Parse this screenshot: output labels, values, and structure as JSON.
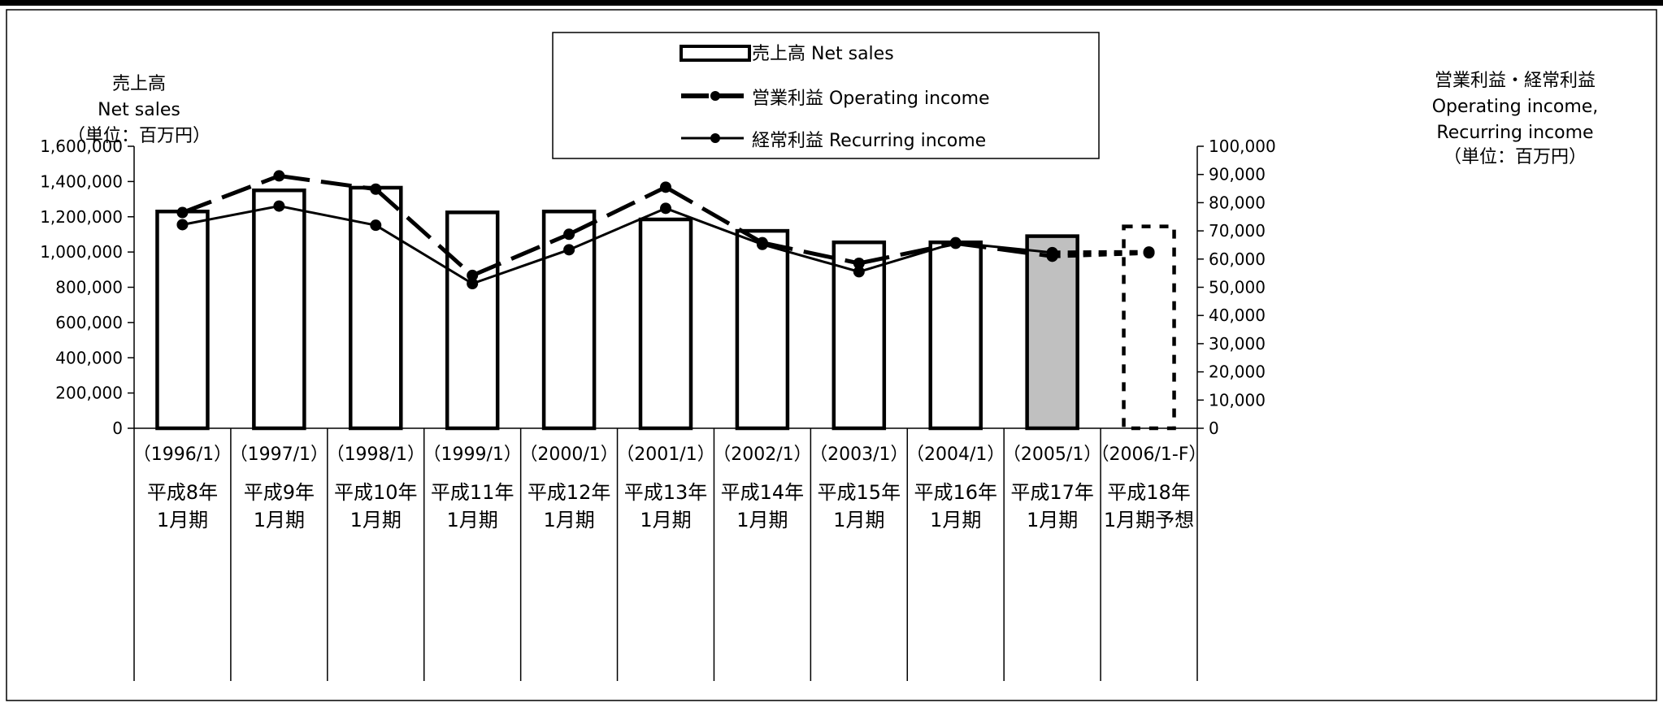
{
  "chart_data": {
    "type": "bar",
    "left_axis_title": [
      "売上高",
      "Net sales",
      "（単位：百万円）"
    ],
    "right_axis_title": [
      "営業利益・経常利益",
      "Operating income,",
      "Recurring income",
      "（単位：百万円）"
    ],
    "categories_year": [
      "（1996/1）",
      "（1997/1）",
      "（1998/1）",
      "（1999/1）",
      "（2000/1）",
      "（2001/1）",
      "（2002/1）",
      "（2003/1）",
      "（2004/1）",
      "（2005/1）",
      "（2006/1-F）"
    ],
    "categories_jp_1": [
      "平成8年",
      "平成9年",
      "平成10年",
      "平成11年",
      "平成12年",
      "平成13年",
      "平成14年",
      "平成15年",
      "平成16年",
      "平成17年",
      "平成18年"
    ],
    "categories_jp_2": [
      "1月期",
      "1月期",
      "1月期",
      "1月期",
      "1月期",
      "1月期",
      "1月期",
      "1月期",
      "1月期",
      "1月期",
      "1月期予想"
    ],
    "left_ticks": [
      "0",
      "200,000",
      "400,000",
      "600,000",
      "800,000",
      "1,000,000",
      "1,200,000",
      "1,400,000",
      "1,600,000"
    ],
    "right_ticks": [
      "0",
      "10,000",
      "20,000",
      "30,000",
      "40,000",
      "50,000",
      "60,000",
      "70,000",
      "80,000",
      "90,000",
      "100,000"
    ],
    "ylim_left": [
      0,
      1600000
    ],
    "ylim_right": [
      0,
      100000
    ],
    "series": [
      {
        "name": "売上高 Net sales",
        "kind": "bar",
        "axis": "left",
        "values": [
          1230000,
          1350000,
          1365000,
          1225000,
          1230000,
          1185000,
          1120000,
          1055000,
          1055000,
          1090000,
          1145000
        ]
      },
      {
        "name": "営業利益 Operating income",
        "kind": "line",
        "axis": "right",
        "style": "dashed",
        "values": [
          76500,
          89500,
          84800,
          54200,
          68800,
          85500,
          65800,
          58500,
          65600,
          61000,
          62200
        ]
      },
      {
        "name": "経常利益 Recurring income",
        "kind": "line",
        "axis": "right",
        "style": "solid",
        "values": [
          72200,
          78800,
          72000,
          51300,
          63300,
          78000,
          65200,
          55500,
          65800,
          62300,
          62500
        ]
      }
    ],
    "legend_labels": [
      "売上高 Net sales",
      "営業利益 Operating income",
      "経常利益 Recurring income"
    ],
    "legend_position": "top-center",
    "highlight_color": "#c0c0c0"
  }
}
